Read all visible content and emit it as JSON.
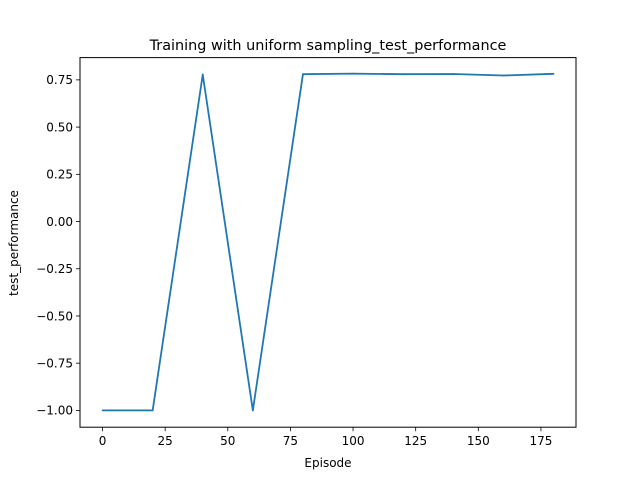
{
  "chart_data": {
    "type": "line",
    "title": "Training with uniform sampling_test_performance",
    "xlabel": "Episode",
    "ylabel": "test_performance",
    "xlim": [
      -9,
      189
    ],
    "ylim": [
      -1.0889,
      0.8679
    ],
    "xticks": [
      0,
      25,
      50,
      75,
      100,
      125,
      150,
      175
    ],
    "xtick_labels": [
      "0",
      "25",
      "50",
      "75",
      "100",
      "125",
      "150",
      "175"
    ],
    "yticks": [
      -1.0,
      -0.75,
      -0.5,
      -0.25,
      0.0,
      0.25,
      0.5,
      0.75
    ],
    "ytick_labels": [
      "−1.00",
      "−0.75",
      "−0.50",
      "−0.25",
      "0.00",
      "0.25",
      "0.50",
      "0.75"
    ],
    "grid": false,
    "series": [
      {
        "color": "#1f77b4",
        "x": [
          0,
          20,
          40,
          60,
          80,
          100,
          120,
          140,
          160,
          180
        ],
        "y": [
          -1.0,
          -1.0,
          0.778,
          -1.0,
          0.78,
          0.783,
          0.78,
          0.781,
          0.773,
          0.782
        ]
      }
    ]
  }
}
